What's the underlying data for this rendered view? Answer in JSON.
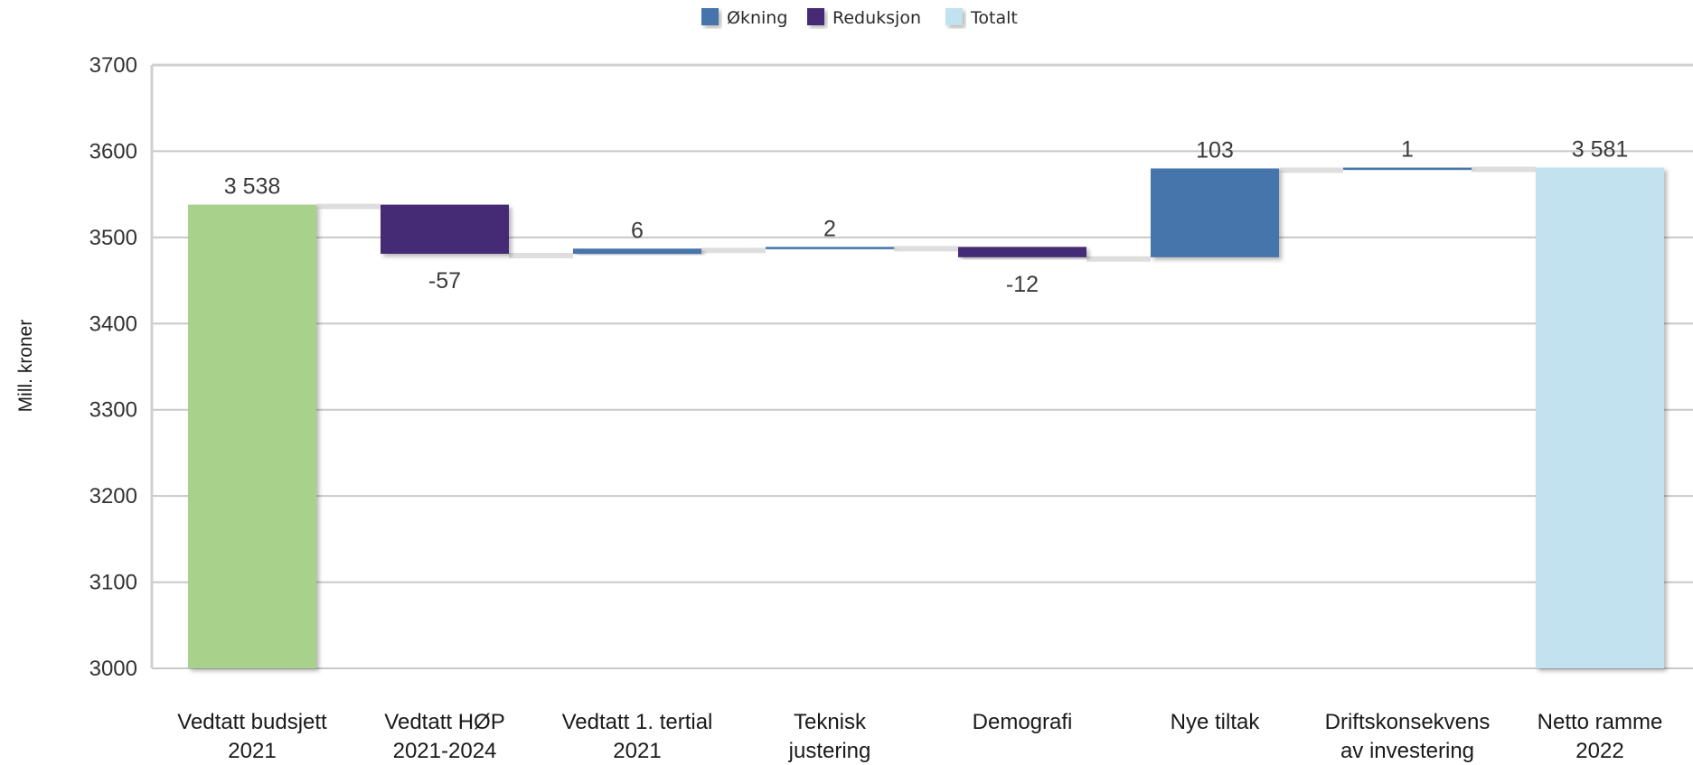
{
  "chart_data": {
    "type": "bar",
    "subtype": "waterfall",
    "title": "",
    "ylabel": "Mill. kroner",
    "xlabel": "",
    "ylim": [
      3000,
      3700
    ],
    "yticks": [
      3000,
      3100,
      3200,
      3300,
      3400,
      3500,
      3600,
      3700
    ],
    "grid": true,
    "legend_position": "top-center",
    "legend": [
      {
        "name": "Økning",
        "color": "#4475aa"
      },
      {
        "name": "Reduksjon",
        "color": "#442a74"
      },
      {
        "name": "Totalt",
        "color": "#c2e2f0"
      }
    ],
    "categories": [
      [
        "Vedtatt budsjett",
        "2021"
      ],
      [
        "Vedtatt HØP",
        "2021-2024"
      ],
      [
        "Vedtatt 1. tertial",
        "2021"
      ],
      [
        "Teknisk",
        "justering"
      ],
      [
        "Demografi"
      ],
      [
        "Nye tiltak"
      ],
      [
        "Driftskonsekvens",
        "av investering"
      ],
      [
        "Netto ramme",
        "2022"
      ]
    ],
    "bars": [
      {
        "kind": "start",
        "start": 3000,
        "end": 3538,
        "label": "3 538",
        "color": "#a8d18c"
      },
      {
        "kind": "decrease",
        "start": 3538,
        "end": 3481,
        "label": "-57",
        "color": "#442a74"
      },
      {
        "kind": "increase",
        "start": 3481,
        "end": 3487,
        "label": "6",
        "color": "#4475aa"
      },
      {
        "kind": "increase",
        "start": 3487,
        "end": 3489,
        "label": "2",
        "color": "#4475aa"
      },
      {
        "kind": "decrease",
        "start": 3489,
        "end": 3477,
        "label": "-12",
        "color": "#442a74"
      },
      {
        "kind": "increase",
        "start": 3477,
        "end": 3580,
        "label": "103",
        "color": "#4475aa"
      },
      {
        "kind": "increase",
        "start": 3580,
        "end": 3581,
        "label": "1",
        "color": "#4475aa"
      },
      {
        "kind": "total",
        "start": 3000,
        "end": 3581,
        "label": "3 581",
        "color": "#c2e2f0"
      }
    ]
  }
}
